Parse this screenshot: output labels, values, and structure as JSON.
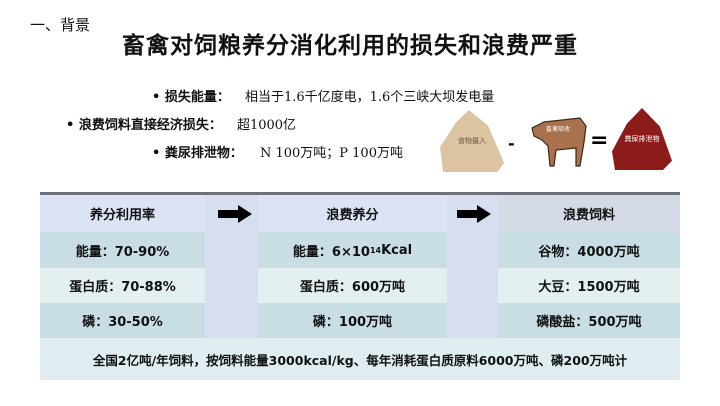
{
  "section": "一、背景",
  "title": "畜禽对饲粮养分消化利用的损失和浪费严重",
  "bullets": [
    {
      "label": "损失能量：",
      "value": "相当于1.6千亿度电，1.6个三峡大坝发电量"
    },
    {
      "label": "浪费饲料直接经济损失：",
      "value": "超1000亿"
    },
    {
      "label": "粪尿排泄物：",
      "value": "N 100万吨；P 100万吨"
    }
  ],
  "diagram": {
    "intake": "食物摄入",
    "minus": "-",
    "absorb": "畜禽吸收",
    "equals": "=",
    "excreta": "粪尿排泄物"
  },
  "table": {
    "columns": [
      {
        "header": "养分利用率",
        "rows": [
          "能量：70-90%",
          "蛋白质：70-88%",
          "磷：30-50%"
        ]
      },
      {
        "header": "浪费养分",
        "rows": [
          "能量：6×10",
          "蛋白质：600万吨",
          "磷：100万吨"
        ],
        "sup": "14",
        "suffix": "Kcal"
      },
      {
        "header": "浪费饲料",
        "rows": [
          "谷物：4000万吨",
          "大豆：1500万吨",
          "磷酸盐：500万吨"
        ]
      }
    ],
    "footer": "全国2亿吨/年饲料，按饲料能量3000kcal/kg、每年消耗蛋白质原料6000万吨、磷200万吨计"
  }
}
